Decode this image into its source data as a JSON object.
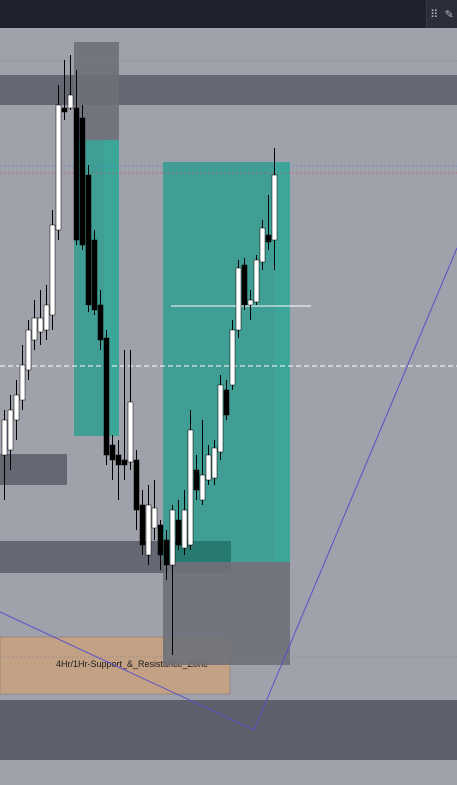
{
  "colors": {
    "background": "#9fa1ab",
    "topbar": "#1e222d",
    "bull_candle": "#ffffff",
    "bear_candle": "#000000",
    "gray_zone": "#5b5d68",
    "teal_zone": "#2f9e8f",
    "support_zone": "#c9a17f",
    "trend_line": "#5b4fc9"
  },
  "toolbar": {
    "handle_icon": "drag-handle-icon",
    "tool_icon": "pencil-icon"
  },
  "chart_data": {
    "type": "candlestick",
    "grid": false,
    "annotations": [
      {
        "kind": "zone",
        "label": "4Hr/1Hr-Support_&_Resistance_Zone",
        "color": "#c9a17f"
      },
      {
        "kind": "long-position",
        "color": "#2f9e8f"
      },
      {
        "kind": "short-position",
        "color": "#2f9e8f"
      },
      {
        "kind": "trend-line",
        "color": "#5b4fc9"
      }
    ]
  }
}
